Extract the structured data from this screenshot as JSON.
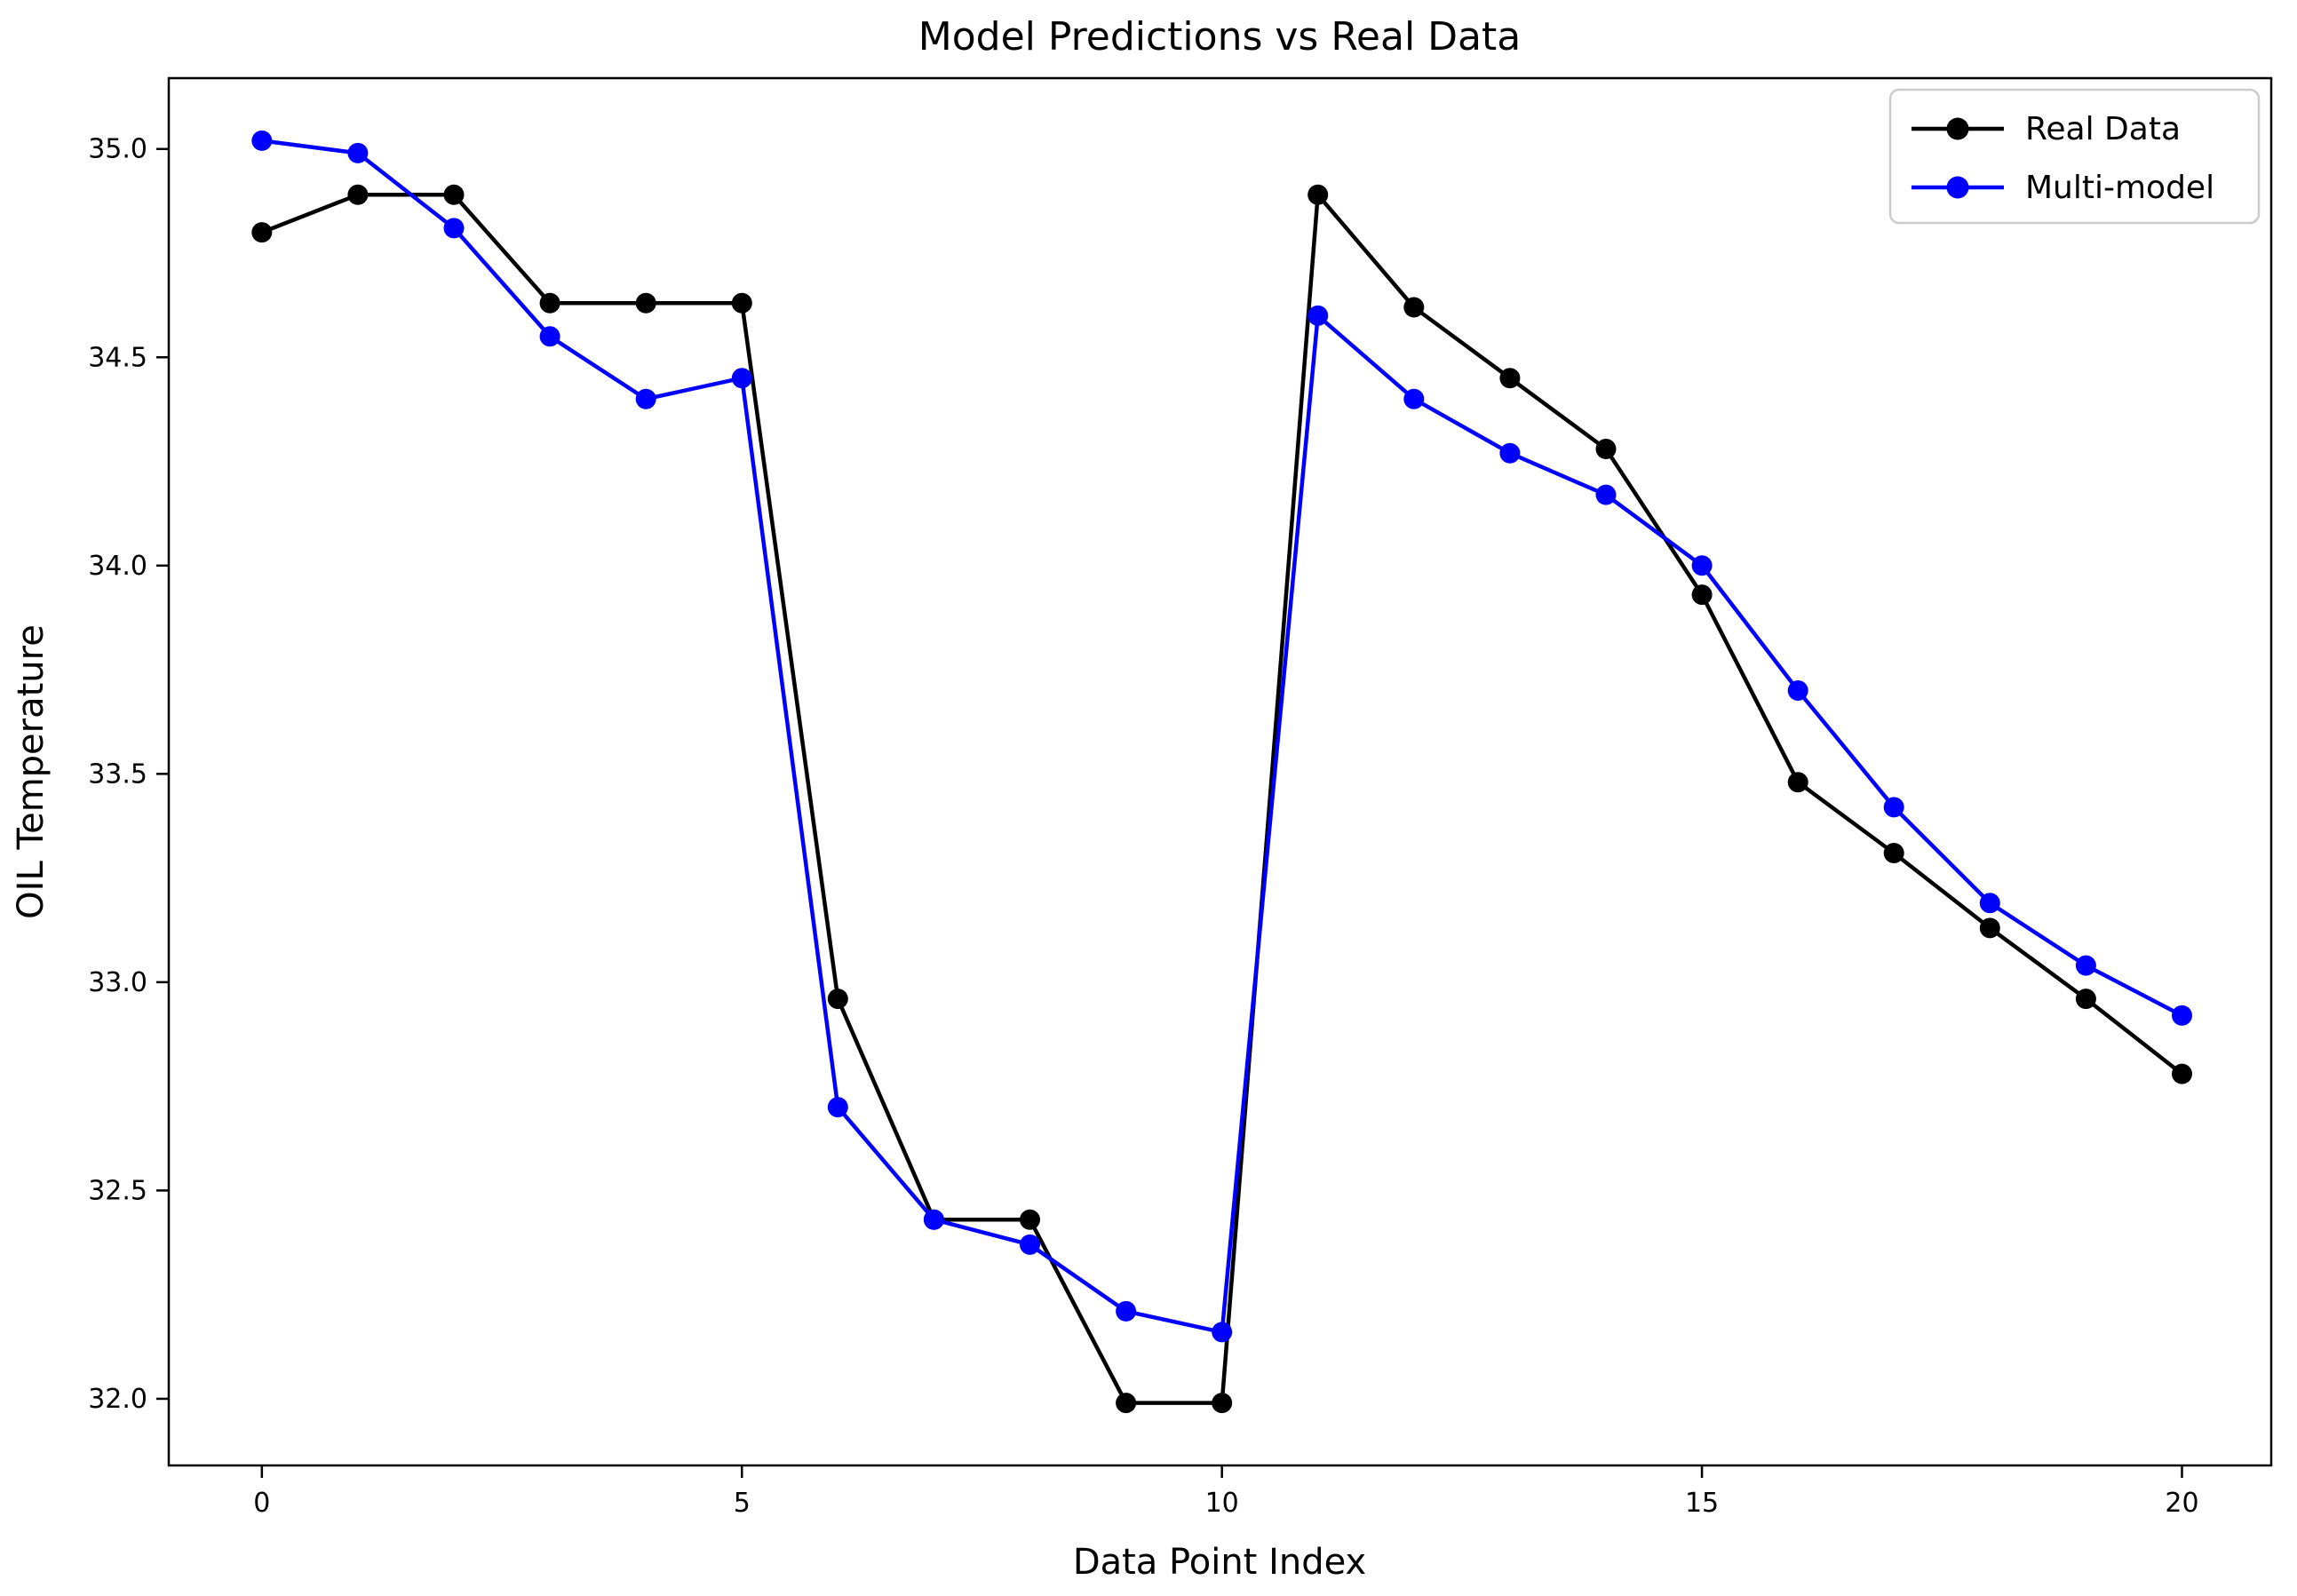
{
  "chart_data": {
    "type": "line",
    "title": "Model Predictions vs Real Data",
    "xlabel": "Data Point Index",
    "ylabel": "OIL Temperature",
    "x": [
      0,
      1,
      2,
      3,
      4,
      5,
      6,
      7,
      8,
      9,
      10,
      11,
      12,
      13,
      14,
      15,
      16,
      17,
      18,
      19,
      20
    ],
    "xticks": [
      0,
      5,
      10,
      15,
      20
    ],
    "yticks": [
      32.0,
      32.5,
      33.0,
      33.5,
      34.0,
      34.5,
      35.0
    ],
    "xlim": [
      -0.97,
      20.93
    ],
    "ylim": [
      31.84,
      35.17
    ],
    "grid": false,
    "legend_position": "upper right",
    "series": [
      {
        "name": "Real Data",
        "color": "#000000",
        "marker": "circle",
        "values": [
          34.8,
          34.89,
          34.89,
          34.63,
          34.63,
          34.63,
          32.96,
          32.43,
          32.43,
          31.99,
          31.99,
          34.89,
          34.62,
          34.45,
          34.28,
          33.93,
          33.48,
          33.31,
          33.13,
          32.96,
          32.78
        ]
      },
      {
        "name": "Multi-model",
        "color": "#0000ff",
        "marker": "circle",
        "values": [
          35.02,
          34.99,
          34.81,
          34.55,
          34.4,
          34.45,
          32.7,
          32.43,
          32.37,
          32.21,
          32.16,
          34.6,
          34.4,
          34.27,
          34.17,
          34.0,
          33.7,
          33.42,
          33.19,
          33.04,
          32.92
        ]
      }
    ]
  }
}
